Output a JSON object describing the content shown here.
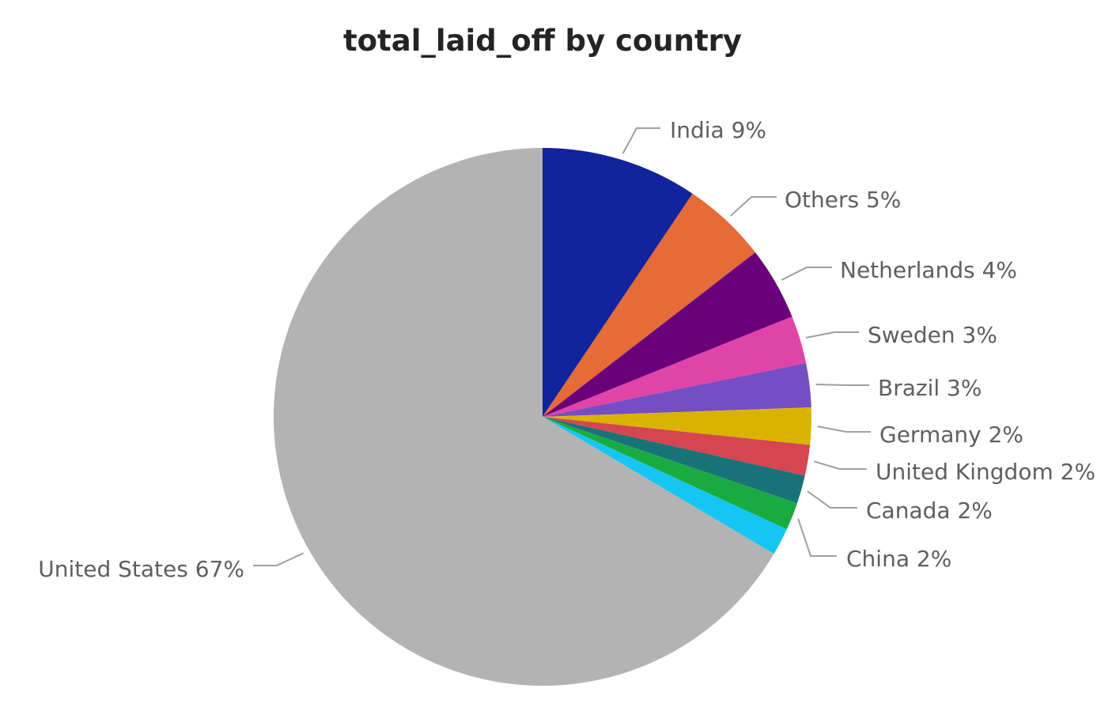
{
  "chart_data": {
    "type": "pie",
    "title": "total_laid_off by country",
    "start_category": "India",
    "direction": "clockwise",
    "slices": [
      {
        "label": "India",
        "value": 9.42,
        "display": "India 9%",
        "color": "#12239e"
      },
      {
        "label": "Others",
        "value": 5.11,
        "display": "Others 5%",
        "color": "#e66c37"
      },
      {
        "label": "Netherlands",
        "value": 4.39,
        "display": "Netherlands 4%",
        "color": "#6b007b"
      },
      {
        "label": "Sweden",
        "value": 2.88,
        "display": "Sweden 3%",
        "color": "#e044a7"
      },
      {
        "label": "Brazil",
        "value": 2.64,
        "display": "Brazil 3%",
        "color": "#744ec2"
      },
      {
        "label": "Germany",
        "value": 2.23,
        "display": "Germany 2%",
        "color": "#d9b300"
      },
      {
        "label": "United Kingdom",
        "value": 1.84,
        "display": "United Kingdom 2%",
        "color": "#d64550"
      },
      {
        "label": "Canada",
        "value": 1.7,
        "display": "Canada 2%",
        "color": "#197278"
      },
      {
        "label": "China",
        "value": 1.66,
        "display": "China 2%",
        "color": "#1aab40"
      },
      {
        "label": "",
        "value": 1.64,
        "display": "",
        "color": "#15c6f4"
      },
      {
        "label": "United States",
        "value": 66.49,
        "display": "United States 67%",
        "color": "#b3b3b3"
      }
    ]
  }
}
